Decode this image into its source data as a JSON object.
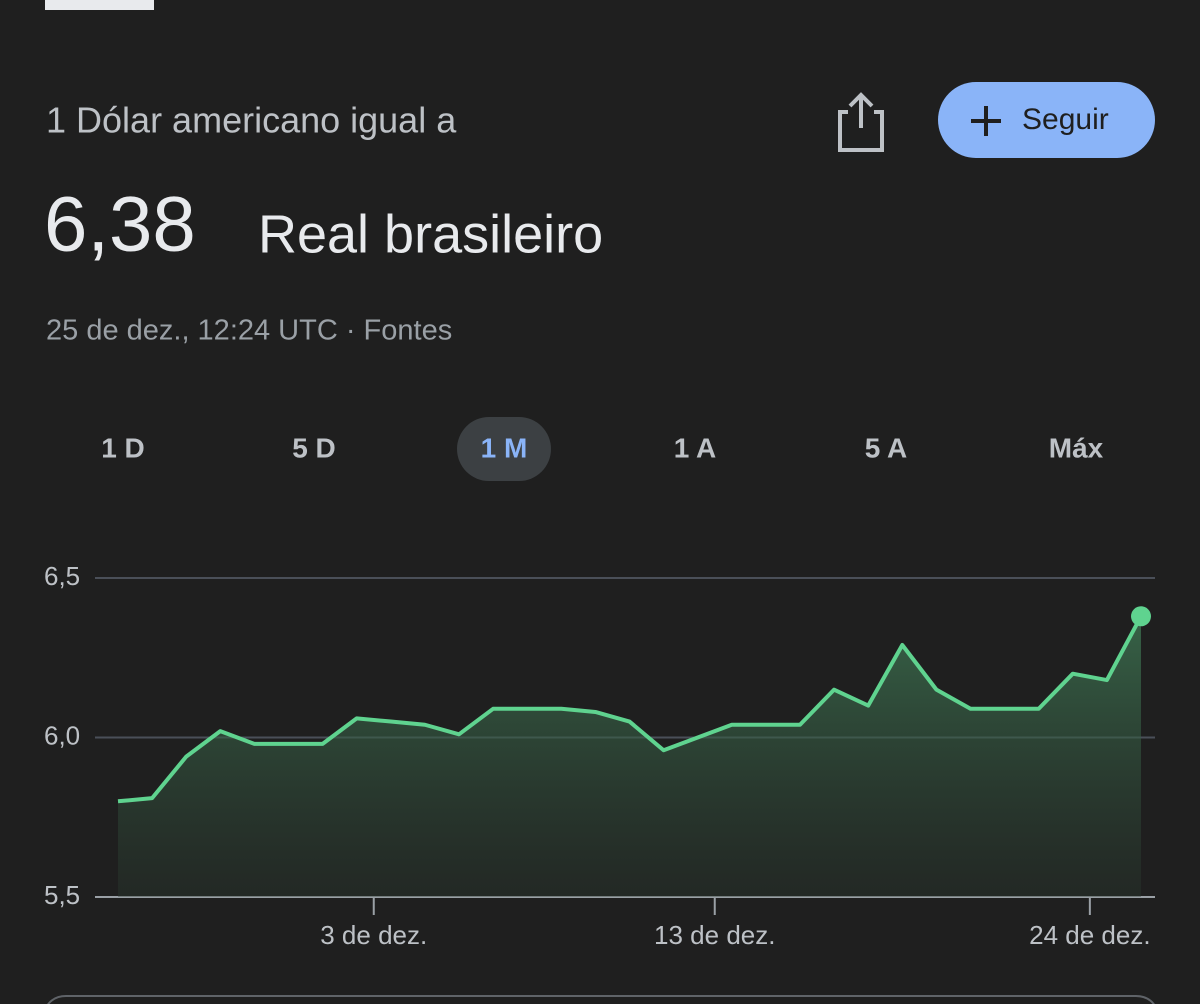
{
  "header": {
    "subtitle": "1 Dólar americano igual a",
    "rate": "6,38",
    "currency": "Real brasileiro",
    "timestamp": "25 de dez., 12:24 UTC · Fontes",
    "follow_button": "Seguir"
  },
  "ranges": [
    "1 D",
    "5 D",
    "1 M",
    "1 A",
    "5 A",
    "Máx"
  ],
  "selected_range_index": 2,
  "chart_data": {
    "type": "area",
    "categories": [
      null,
      null,
      null,
      null,
      null,
      null,
      null,
      null,
      null,
      null,
      null,
      null,
      null,
      null,
      null,
      null,
      null,
      null,
      null,
      null,
      null,
      null,
      null,
      null,
      null,
      null,
      null,
      null,
      null,
      null,
      null
    ],
    "values": [
      5.8,
      5.81,
      5.94,
      6.02,
      5.98,
      5.98,
      5.98,
      6.06,
      6.05,
      6.04,
      6.01,
      6.09,
      6.09,
      6.09,
      6.08,
      6.05,
      5.96,
      6.0,
      6.04,
      6.04,
      6.04,
      6.15,
      6.1,
      6.29,
      6.15,
      6.09,
      6.09,
      6.09,
      6.2,
      6.18,
      6.38
    ],
    "color": "#5fd38f",
    "ylim": [
      5.5,
      6.5
    ],
    "yticks": [
      {
        "value": 5.5,
        "label": "5,5"
      },
      {
        "value": 6.0,
        "label": "6,0"
      },
      {
        "value": 6.5,
        "label": "6,5"
      }
    ],
    "xticks": [
      {
        "value": 7.5,
        "label": "3 de dez."
      },
      {
        "value": 17.5,
        "label": "13 de dez."
      },
      {
        "value": 28.5,
        "label": "24 de dez."
      }
    ],
    "grid": true
  }
}
